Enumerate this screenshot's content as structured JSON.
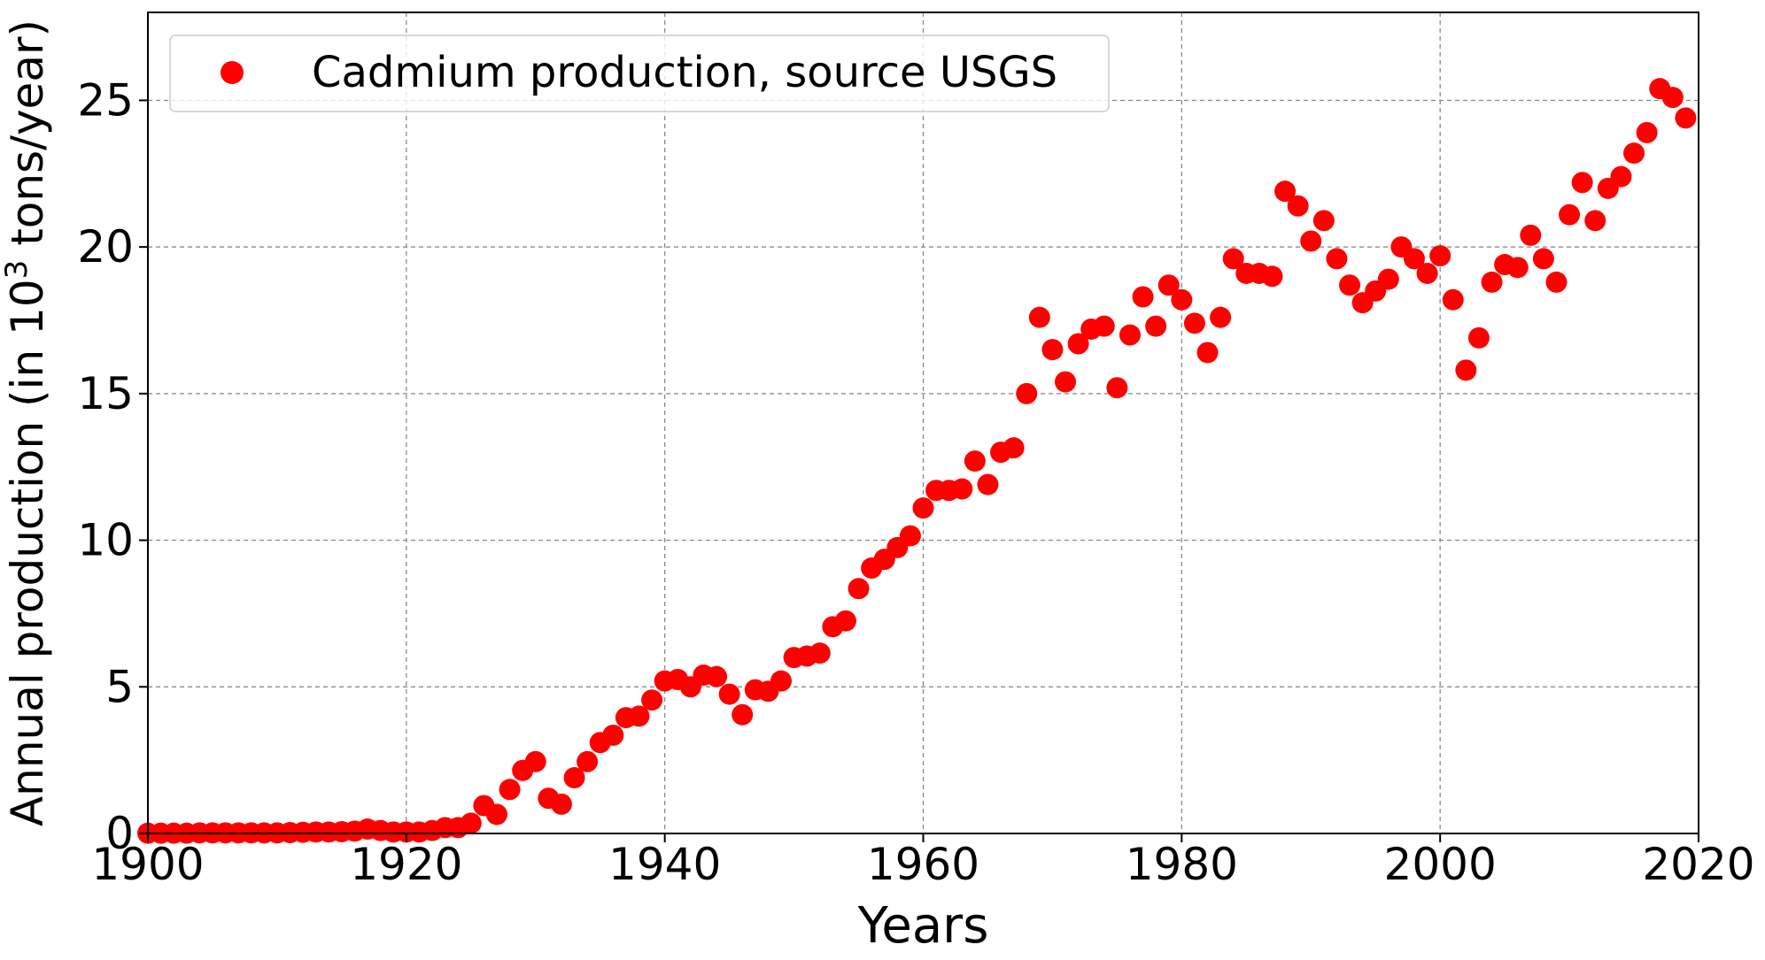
{
  "chart_data": {
    "type": "scatter",
    "title": "",
    "xlabel": "Years",
    "ylabel": {
      "prefix": "Annual production (in 10",
      "superscript": "3",
      "suffix": " tons/year)"
    },
    "xlim": [
      1900,
      2020
    ],
    "ylim": [
      0,
      28
    ],
    "xticks": [
      "1900",
      "1920",
      "1940",
      "1960",
      "1980",
      "2000",
      "2020"
    ],
    "yticks": [
      "0",
      "5",
      "10",
      "15",
      "20",
      "25"
    ],
    "grid": true,
    "legend_position": "top-left",
    "series": [
      {
        "name": "Cadmium production, source USGS",
        "color": "#ff0000",
        "marker": "circle",
        "x": [
          1900,
          1901,
          1902,
          1903,
          1904,
          1905,
          1906,
          1907,
          1908,
          1909,
          1910,
          1911,
          1912,
          1913,
          1914,
          1915,
          1916,
          1917,
          1918,
          1919,
          1920,
          1921,
          1922,
          1923,
          1924,
          1925,
          1926,
          1927,
          1928,
          1929,
          1930,
          1931,
          1932,
          1933,
          1934,
          1935,
          1936,
          1937,
          1938,
          1939,
          1940,
          1941,
          1942,
          1943,
          1944,
          1945,
          1946,
          1947,
          1948,
          1949,
          1950,
          1951,
          1952,
          1953,
          1954,
          1955,
          1956,
          1957,
          1958,
          1959,
          1960,
          1961,
          1962,
          1963,
          1964,
          1965,
          1966,
          1967,
          1968,
          1969,
          1970,
          1971,
          1972,
          1973,
          1974,
          1975,
          1976,
          1977,
          1978,
          1979,
          1980,
          1981,
          1982,
          1983,
          1984,
          1985,
          1986,
          1987,
          1988,
          1989,
          1990,
          1991,
          1992,
          1993,
          1994,
          1995,
          1996,
          1997,
          1998,
          1999,
          2000,
          2001,
          2002,
          2003,
          2004,
          2005,
          2006,
          2007,
          2008,
          2009,
          2010,
          2011,
          2012,
          2013,
          2014,
          2015,
          2016,
          2017,
          2018,
          2019
        ],
        "y": [
          0.01,
          0.01,
          0.01,
          0.01,
          0.02,
          0.02,
          0.02,
          0.02,
          0.02,
          0.02,
          0.02,
          0.03,
          0.04,
          0.05,
          0.05,
          0.06,
          0.08,
          0.15,
          0.1,
          0.05,
          0.05,
          0.05,
          0.1,
          0.2,
          0.2,
          0.35,
          0.95,
          0.65,
          1.5,
          2.15,
          2.45,
          1.2,
          1.0,
          1.9,
          2.45,
          3.1,
          3.35,
          3.95,
          4.0,
          4.55,
          5.2,
          5.25,
          5.0,
          5.4,
          5.35,
          4.75,
          4.05,
          4.9,
          4.85,
          5.2,
          6.0,
          6.05,
          6.15,
          7.05,
          7.25,
          8.35,
          9.05,
          9.35,
          9.75,
          10.15,
          11.1,
          11.7,
          11.7,
          11.75,
          12.7,
          11.9,
          13.0,
          13.15,
          15.0,
          17.6,
          16.5,
          15.4,
          16.7,
          17.2,
          17.3,
          15.2,
          17.0,
          18.3,
          17.3,
          18.7,
          18.2,
          17.4,
          16.4,
          17.6,
          19.6,
          19.1,
          19.1,
          19.0,
          21.9,
          21.4,
          20.2,
          20.9,
          19.6,
          18.7,
          18.1,
          18.5,
          18.9,
          20.0,
          19.6,
          19.1,
          19.7,
          18.2,
          15.8,
          16.9,
          18.8,
          19.4,
          19.3,
          20.4,
          19.6,
          18.8,
          21.1,
          22.2,
          20.9,
          22.0,
          22.4,
          23.2,
          23.9,
          25.4,
          25.1,
          24.4
        ]
      }
    ]
  }
}
